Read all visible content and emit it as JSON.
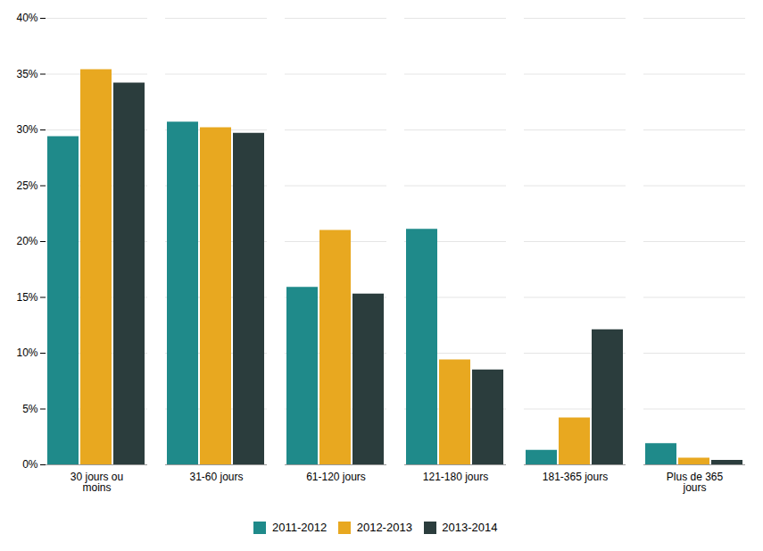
{
  "chart_data": {
    "type": "bar",
    "categories": [
      "30 jours ou\nmoins",
      "31-60 jours",
      "61-120 jours",
      "121-180 jours",
      "181-365 jours",
      "Plus de 365\njours"
    ],
    "series": [
      {
        "name": "2011-2012",
        "color": "#1F8A8A",
        "values": [
          0.294,
          0.307,
          0.159,
          0.211,
          0.013,
          0.019
        ]
      },
      {
        "name": "2012-2013",
        "color": "#E8A820",
        "values": [
          0.354,
          0.302,
          0.21,
          0.094,
          0.042,
          0.006
        ]
      },
      {
        "name": "2013-2014",
        "color": "#2B3D3D",
        "values": [
          0.342,
          0.297,
          0.153,
          0.085,
          0.121,
          0.004
        ]
      }
    ],
    "ylim": [
      0,
      0.4
    ],
    "yticks": [
      {
        "value": 0.0,
        "label": "0%"
      },
      {
        "value": 0.05,
        "label": "5%"
      },
      {
        "value": 0.1,
        "label": "10%"
      },
      {
        "value": 0.15,
        "label": "15%"
      },
      {
        "value": 0.2,
        "label": "20%"
      },
      {
        "value": 0.25,
        "label": "25%"
      },
      {
        "value": 0.3,
        "label": "30%"
      },
      {
        "value": 0.35,
        "label": "35%"
      },
      {
        "value": 0.4,
        "label": "40%"
      }
    ],
    "grid": true,
    "legend": "bottom"
  }
}
